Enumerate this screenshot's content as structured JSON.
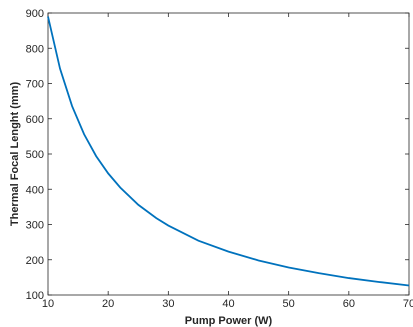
{
  "chart_data": {
    "type": "line",
    "title": "",
    "xlabel": "Pump Power (W)",
    "ylabel": "Thermal Focal Lenght (mm)",
    "xlim": [
      10,
      70
    ],
    "ylim": [
      100,
      900
    ],
    "xticks": [
      10,
      20,
      30,
      40,
      50,
      60,
      70
    ],
    "yticks": [
      100,
      200,
      300,
      400,
      500,
      600,
      700,
      800,
      900
    ],
    "xtick_labels": [
      "10",
      "20",
      "30",
      "40",
      "50",
      "60",
      "70"
    ],
    "ytick_labels": [
      "100",
      "200",
      "300",
      "400",
      "500",
      "600",
      "700",
      "800",
      "900"
    ],
    "grid": false,
    "line_color": "#0072BD",
    "axis_color": "#262626",
    "series": [
      {
        "x": [
          10,
          12,
          14,
          16,
          18,
          20,
          22,
          25,
          28,
          30,
          35,
          40,
          45,
          50,
          55,
          60,
          65,
          70
        ],
        "values": [
          890,
          742,
          636,
          556,
          494,
          445,
          405,
          356,
          318,
          297,
          254,
          223,
          198,
          178,
          162,
          148,
          137,
          127
        ]
      }
    ]
  }
}
